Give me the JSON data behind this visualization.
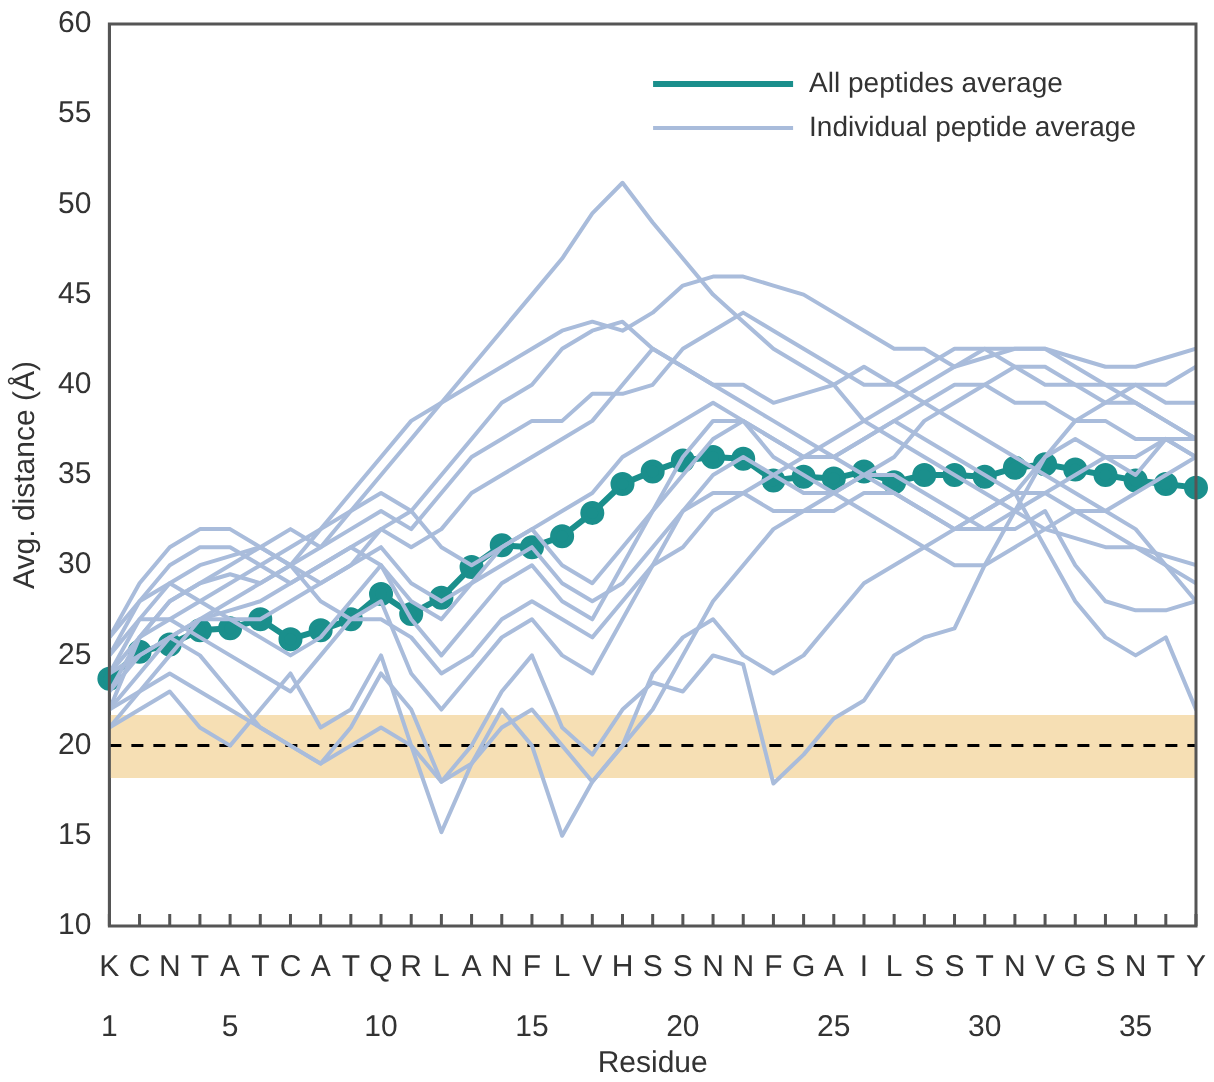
{
  "chart_data": {
    "type": "line",
    "xlabel": "Residue",
    "ylabel": "Avg. distance (Å)",
    "legend": "top right",
    "categories": [
      "K",
      "C",
      "N",
      "T",
      "A",
      "T",
      "C",
      "A",
      "T",
      "Q",
      "R",
      "L",
      "A",
      "N",
      "F",
      "L",
      "V",
      "H",
      "S",
      "S",
      "N",
      "N",
      "F",
      "G",
      "A",
      "I",
      "L",
      "S",
      "S",
      "T",
      "N",
      "V",
      "G",
      "S",
      "N",
      "T",
      "Y"
    ],
    "x2lim": [
      1,
      37
    ],
    "x2ticks": [
      1,
      5,
      10,
      15,
      20,
      25,
      30,
      35
    ],
    "ylim": [
      10,
      60
    ],
    "yticks": [
      10,
      15,
      20,
      25,
      30,
      35,
      40,
      45,
      50,
      55,
      60
    ],
    "bands": [
      {
        "axis": "y",
        "from": 18.2,
        "to": 21.7,
        "color": "#f6dfb4"
      }
    ],
    "ref_lines": [
      {
        "axis": "y",
        "value": 20,
        "color": "#000000",
        "line_style": "dashed"
      }
    ],
    "series": [
      {
        "name": "Individual peptide average",
        "color": "#a9bcdb",
        "marker": "none",
        "values": [
          22,
          26,
          28,
          29,
          29.5,
          29,
          30,
          31,
          33,
          35,
          37,
          39,
          41,
          43,
          45,
          47,
          49.5,
          51.2,
          49,
          47,
          45,
          43.5,
          42,
          41,
          40,
          38,
          37,
          36,
          35,
          34,
          33,
          32,
          31.5,
          31,
          31,
          30.5,
          30
        ]
      },
      {
        "color": "#a9bcdb",
        "marker": "none",
        "values": [
          25,
          28,
          30,
          31,
          31,
          30,
          31,
          32,
          34,
          36,
          38,
          39,
          40,
          41,
          42,
          43,
          43.5,
          43,
          44,
          45.5,
          46,
          46,
          45.5,
          45,
          44,
          43,
          42,
          42,
          41,
          41.5,
          42,
          42,
          41.5,
          41,
          41,
          41.5,
          42
        ]
      },
      {
        "color": "#a9bcdb",
        "marker": "none",
        "values": [
          24,
          27,
          29,
          30,
          30.5,
          31,
          30,
          32,
          33,
          34,
          33,
          35,
          37,
          39,
          40,
          42,
          43,
          43.5,
          42,
          41,
          40,
          40,
          39,
          39.5,
          40,
          41,
          40,
          39,
          38,
          37,
          36,
          35,
          34,
          33,
          32,
          30,
          28
        ]
      },
      {
        "color": "#a9bcdb",
        "marker": "none",
        "values": [
          23,
          26,
          28,
          29,
          30,
          31,
          32,
          31,
          32,
          33,
          32,
          34,
          36,
          37,
          38,
          38,
          39.5,
          39.5,
          40,
          42,
          43,
          44,
          43,
          42,
          41,
          40,
          40,
          41,
          42,
          42,
          41,
          40,
          40,
          39,
          39,
          38,
          37
        ]
      },
      {
        "color": "#a9bcdb",
        "marker": "none",
        "values": [
          26,
          28,
          29,
          28,
          27,
          27,
          28,
          29,
          30,
          32,
          31,
          32,
          34,
          35,
          36,
          37,
          38,
          40,
          42,
          41,
          40,
          39,
          38,
          37,
          36,
          37,
          38,
          39,
          40,
          40,
          39,
          39,
          38,
          38,
          37,
          37,
          36
        ]
      },
      {
        "color": "#a9bcdb",
        "marker": "none",
        "values": [
          21,
          22,
          23,
          21,
          20,
          22,
          24,
          21,
          22,
          25,
          20,
          15.2,
          19,
          22,
          20,
          15,
          18,
          20,
          24,
          26,
          27,
          25,
          24,
          25,
          27,
          29,
          30,
          31,
          32,
          33,
          34,
          34,
          33,
          32,
          31,
          30,
          29
        ]
      },
      {
        "color": "#a9bcdb",
        "marker": "none",
        "values": [
          22,
          24,
          26,
          25,
          23,
          21,
          20,
          19,
          21,
          24,
          22,
          18,
          20,
          23,
          25,
          21,
          19.5,
          22,
          23.5,
          23,
          25,
          24.5,
          17.9,
          19.5,
          21.5,
          22.5,
          25,
          26,
          26.5,
          30,
          33,
          36,
          37,
          36,
          35,
          37,
          36
        ]
      },
      {
        "color": "#a9bcdb",
        "marker": "none",
        "values": [
          24,
          26,
          27,
          28,
          29,
          30,
          29,
          30,
          31,
          30,
          28,
          27,
          29,
          31,
          32,
          30,
          29,
          31,
          33,
          35,
          37,
          38,
          37,
          36,
          36,
          37,
          38,
          37,
          36,
          35,
          34,
          31,
          28,
          26,
          25,
          26,
          22
        ]
      },
      {
        "color": "#a9bcdb",
        "marker": "none",
        "values": [
          25,
          27,
          27,
          26,
          25,
          24,
          23,
          25,
          27,
          28,
          24,
          22,
          24,
          26,
          27,
          25,
          24,
          27,
          30,
          33,
          35,
          36,
          35,
          34,
          34,
          35,
          35,
          34,
          33,
          32,
          32,
          33,
          30,
          28,
          27.5,
          27.5,
          28
        ]
      },
      {
        "color": "#a9bcdb",
        "marker": "none",
        "values": [
          26,
          29,
          31,
          32,
          32,
          31,
          30,
          29,
          30,
          31,
          29,
          28,
          29,
          30,
          31,
          29,
          28,
          29,
          31,
          33,
          34,
          34,
          33,
          33,
          33,
          34,
          34,
          33,
          32,
          32,
          33,
          34,
          35,
          36,
          36,
          37,
          37
        ]
      },
      {
        "color": "#a9bcdb",
        "marker": "none",
        "values": [
          23,
          25,
          26,
          27,
          27,
          26,
          25,
          26,
          28,
          30,
          27,
          25,
          27,
          29,
          30,
          28,
          27,
          30,
          33,
          36,
          38,
          38,
          37,
          36,
          36,
          35,
          34,
          33,
          32,
          33,
          34,
          36,
          38,
          39,
          40,
          40,
          41
        ]
      },
      {
        "color": "#a9bcdb",
        "marker": "none",
        "values": [
          21,
          23,
          25,
          27,
          27.5,
          28,
          29,
          30,
          31,
          32,
          33,
          31,
          30,
          31,
          32,
          33,
          34,
          36,
          37,
          38,
          39,
          38,
          36,
          35,
          34,
          33,
          32,
          31,
          30,
          30,
          31,
          32,
          33,
          33,
          34,
          35,
          36
        ]
      },
      {
        "color": "#a9bcdb",
        "marker": "none",
        "values": [
          24,
          25,
          26,
          27,
          28,
          29,
          30,
          28,
          27,
          27,
          26,
          24,
          25,
          27,
          28,
          27,
          26,
          28,
          30,
          31,
          33,
          34,
          35,
          36,
          37,
          38,
          39,
          40,
          41,
          42,
          42,
          42,
          41,
          40,
          40,
          39,
          39
        ]
      },
      {
        "color": "#a9bcdb",
        "marker": "none",
        "values": [
          22,
          23,
          24,
          23,
          22,
          21,
          20,
          19,
          20,
          21,
          20,
          18,
          19,
          21,
          22,
          20,
          18,
          20,
          22,
          25,
          28,
          30,
          32,
          33,
          34,
          35,
          36,
          38,
          39,
          40,
          41,
          41,
          40,
          40,
          39,
          38,
          37
        ]
      },
      {
        "name": "All peptides average",
        "color": "#1a8f8c",
        "marker": "circle",
        "values": [
          23.7,
          25.2,
          25.6,
          26.4,
          26.5,
          27,
          25.9,
          26.4,
          27,
          28.4,
          27.3,
          28.2,
          29.9,
          31.1,
          31,
          31.6,
          32.9,
          34.5,
          35.2,
          35.8,
          36,
          35.9,
          34.7,
          34.9,
          34.8,
          35.2,
          34.6,
          35,
          35,
          34.9,
          35.4,
          35.6,
          35.3,
          35,
          34.7,
          34.5,
          34.3
        ]
      }
    ]
  }
}
